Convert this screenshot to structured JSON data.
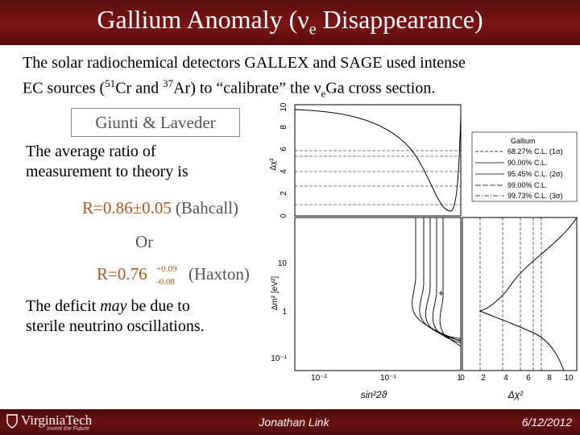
{
  "slide": {
    "title_main": "Gallium Anomaly (ν",
    "title_sub": "e",
    "title_end": " Disappearance)",
    "intro_line1": "The solar radiochemical detectors GALLEX and SAGE used intense",
    "intro_l2_a": "EC sources (",
    "intro_l2_sup1": "51",
    "intro_l2_b": "Cr and ",
    "intro_l2_sup2": "37",
    "intro_l2_c": "Ar) to “calibrate” the ν",
    "intro_l2_sub": "e",
    "intro_l2_d": "Ga cross section.",
    "cite": "Giunti & Laveder",
    "avg_line1": "The average ratio of",
    "avg_line2": "measurement to theory is",
    "r1_value": "R=0.86±0.05",
    "r1_source": "(Bahcall)",
    "or_text": "Or",
    "r2_value": "R=0.76",
    "r2_plus": "+0.09",
    "r2_minus": "-0.08",
    "r2_source": "(Haxton)",
    "deficit_line1a": "The deficit ",
    "deficit_may": "may",
    "deficit_line1b": " be due to",
    "deficit_line2": "sterile neutrino oscillations."
  },
  "plot": {
    "legend_title": "Gallium",
    "legend": [
      {
        "label": "68.27% C.L. (1σ)",
        "dash": "4 2"
      },
      {
        "label": "90.00% C.L.",
        "dash": ""
      },
      {
        "label": "95.45% C.L. (2σ)",
        "dash": ""
      },
      {
        "label": "99.00% C.L.",
        "dash": "7 2"
      },
      {
        "label": "99.73% C.L. (3σ)",
        "dash": "6 2 1 2"
      }
    ],
    "top_ylabel": "Δχ²",
    "top_yticks": [
      "0",
      "2",
      "4",
      "6",
      "8",
      "10"
    ],
    "left_ylabel": "Δm² [eV²]",
    "left_yticks": [
      "10",
      "1",
      "10⁻¹"
    ],
    "bottom_xlabel": "sin²2ϑ",
    "bottom_xticks": [
      "10⁻²",
      "10⁻¹",
      "1"
    ],
    "right_xlabel": "Δχ²",
    "right_xticks": [
      "0",
      "2",
      "4",
      "6",
      "8",
      "10"
    ],
    "plus_marker": "+"
  },
  "footer": {
    "logo_text": "VirginiaTech",
    "logo_tagline": "Invent the Future",
    "presenter": "Jonathan Link",
    "date": "6/12/2012"
  }
}
